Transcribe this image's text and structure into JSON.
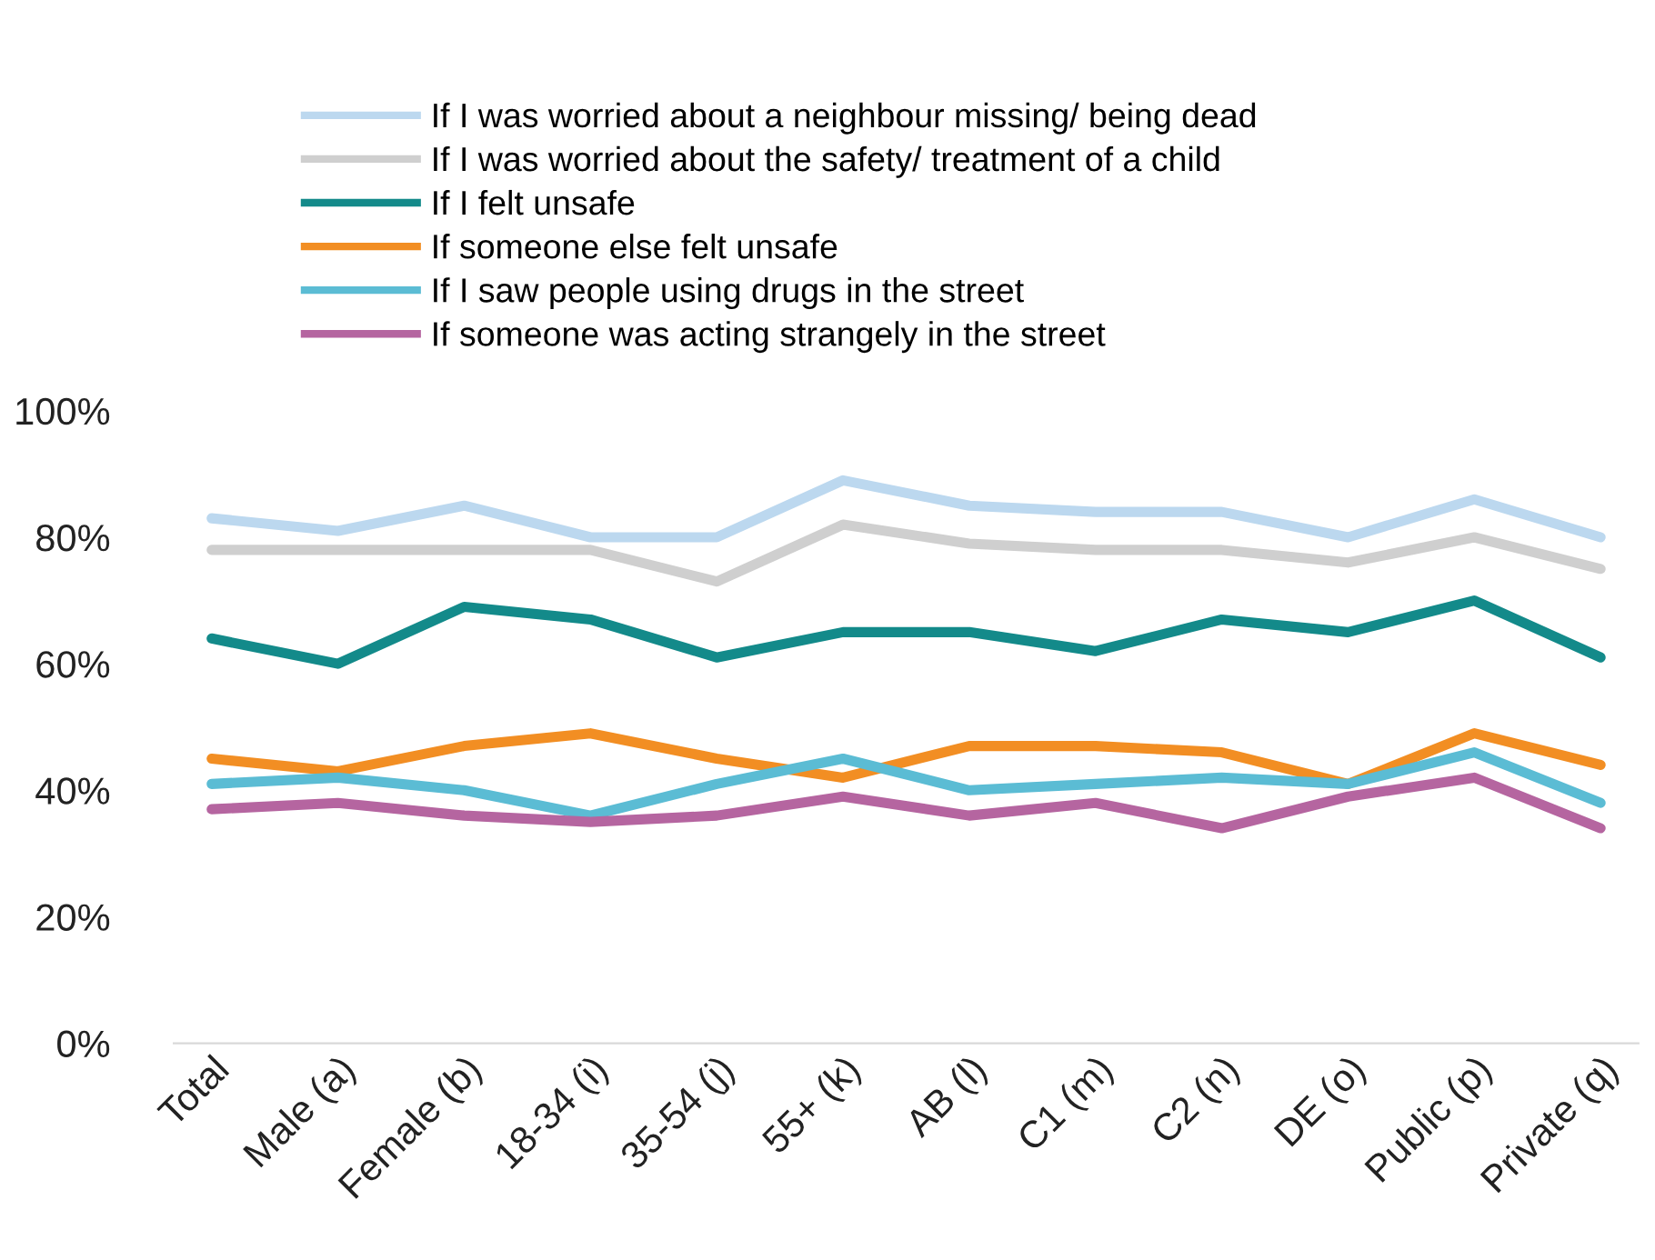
{
  "chart_data": {
    "type": "line",
    "categories": [
      "Total",
      "Male (a)",
      "Female (b)",
      "18-34 (i)",
      "35-54 (j)",
      "55+ (k)",
      "AB (l)",
      "C1 (m)",
      "C2 (n)",
      "DE (o)",
      "Public (p)",
      "Private (q)"
    ],
    "series": [
      {
        "name": "If I was worried about a neighbour missing/ being dead",
        "color": "#bcd8ef",
        "values": [
          83,
          81,
          85,
          80,
          80,
          89,
          85,
          84,
          84,
          80,
          86,
          80
        ]
      },
      {
        "name": "If I was worried about the safety/ treatment of a child",
        "color": "#cfcfcf",
        "values": [
          78,
          78,
          78,
          78,
          73,
          82,
          79,
          78,
          78,
          76,
          80,
          75
        ]
      },
      {
        "name": "If I felt unsafe",
        "color": "#138a8a",
        "values": [
          64,
          60,
          69,
          67,
          61,
          65,
          65,
          62,
          67,
          65,
          70,
          61
        ]
      },
      {
        "name": "If someone else felt unsafe",
        "color": "#f28e23",
        "values": [
          45,
          43,
          47,
          49,
          45,
          42,
          47,
          47,
          46,
          41,
          49,
          44
        ]
      },
      {
        "name": "If I saw people using drugs in the street",
        "color": "#5bbcd4",
        "values": [
          41,
          42,
          40,
          36,
          41,
          45,
          40,
          41,
          42,
          41,
          46,
          38
        ]
      },
      {
        "name": "If someone was acting strangely in the street",
        "color": "#b565a0",
        "values": [
          37,
          38,
          36,
          35,
          36,
          39,
          36,
          38,
          34,
          39,
          42,
          34
        ]
      }
    ],
    "ylim": [
      0,
      100
    ],
    "yticks": [
      {
        "value": 0,
        "label": "0%"
      },
      {
        "value": 20,
        "label": "20%"
      },
      {
        "value": 40,
        "label": "40%"
      },
      {
        "value": 60,
        "label": "60%"
      },
      {
        "value": 80,
        "label": "80%"
      },
      {
        "value": 100,
        "label": "100%"
      }
    ],
    "grid": false,
    "legend": "top",
    "marker": "none",
    "line_style": "solid"
  }
}
